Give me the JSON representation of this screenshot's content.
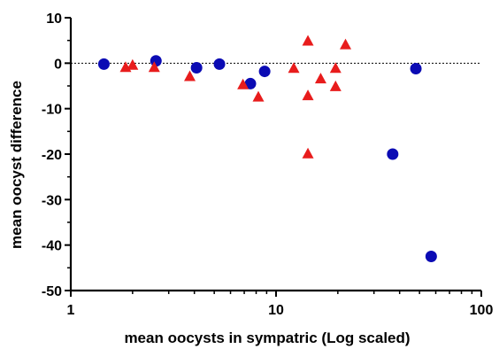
{
  "chart_data": {
    "type": "scatter",
    "xlabel": "mean oocysts in sympatric (Log scaled)",
    "ylabel": "mean oocyst difference",
    "x_scale": "log",
    "xlim": [
      1,
      100
    ],
    "ylim": [
      -50,
      10
    ],
    "x_ticks": [
      "1",
      "10",
      "100"
    ],
    "y_ticks": [
      "10",
      "0",
      "-10",
      "-20",
      "-30",
      "-40",
      "-50"
    ],
    "reference_line_y": 0,
    "series": [
      {
        "marker": "circle",
        "color": "#0b0bb4",
        "points": [
          {
            "x": 1.45,
            "y": -0.2
          },
          {
            "x": 2.6,
            "y": 0.5
          },
          {
            "x": 4.1,
            "y": -1.0
          },
          {
            "x": 5.3,
            "y": -0.2
          },
          {
            "x": 7.5,
            "y": -4.5
          },
          {
            "x": 8.8,
            "y": -1.8
          },
          {
            "x": 37,
            "y": -20.0
          },
          {
            "x": 48,
            "y": -1.2
          },
          {
            "x": 57,
            "y": -42.5
          }
        ]
      },
      {
        "marker": "triangle",
        "color": "#e81c1c",
        "points": [
          {
            "x": 1.85,
            "y": -1.0
          },
          {
            "x": 2.0,
            "y": -0.5
          },
          {
            "x": 2.55,
            "y": -1.0
          },
          {
            "x": 3.8,
            "y": -3.0
          },
          {
            "x": 6.9,
            "y": -4.8
          },
          {
            "x": 8.2,
            "y": -7.5
          },
          {
            "x": 12.2,
            "y": -1.2
          },
          {
            "x": 14.3,
            "y": 4.8
          },
          {
            "x": 14.3,
            "y": -7.2
          },
          {
            "x": 14.3,
            "y": -20.0
          },
          {
            "x": 16.5,
            "y": -3.5
          },
          {
            "x": 19.5,
            "y": -1.2
          },
          {
            "x": 19.5,
            "y": -5.2
          },
          {
            "x": 21.8,
            "y": 4.0
          }
        ]
      }
    ]
  }
}
